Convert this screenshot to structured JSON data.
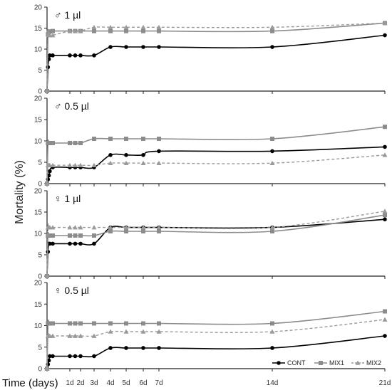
{
  "figure": {
    "ylabel": "Mortality (%)",
    "xlabel": "Time (days)",
    "legend": [
      "CONT",
      "MIX1",
      "MIX2"
    ],
    "colors": {
      "CONT": "#000000",
      "MIX1": "#8c8c8c",
      "MIX2": "#9a9a9a"
    }
  },
  "chart_data": [
    {
      "type": "line",
      "title": "♂ 1 µl",
      "ylim": [
        0,
        20
      ],
      "yticks": [
        "0",
        "5",
        "10",
        "15",
        "20"
      ],
      "x_tick_labels": [
        "1d",
        "2d",
        "3d",
        "4d",
        "5d",
        "6d",
        "7d",
        "14d",
        "21d"
      ],
      "legend_position": "bottom-right",
      "grid": false,
      "series": [
        {
          "name": "CONT",
          "style": "solid-circle",
          "x": [
            0,
            0.04,
            0.08,
            0.12,
            0.25,
            1,
            1.5,
            2,
            3,
            4,
            5,
            6,
            7,
            14,
            21
          ],
          "y": [
            0,
            5.7,
            7.6,
            8.5,
            8.5,
            8.5,
            8.5,
            8.5,
            8.5,
            10.5,
            10.5,
            10.5,
            10.5,
            10.5,
            13.3
          ]
        },
        {
          "name": "MIX1",
          "style": "solid-square",
          "x": [
            0,
            0.04,
            0.08,
            0.12,
            0.25,
            1,
            1.5,
            2,
            3,
            4,
            5,
            6,
            7,
            14,
            21
          ],
          "y": [
            0,
            13.5,
            14.0,
            14.2,
            14.3,
            14.3,
            14.3,
            14.3,
            14.3,
            14.3,
            14.3,
            14.3,
            14.3,
            14.3,
            16.2
          ]
        },
        {
          "name": "MIX2",
          "style": "dashed-triangle",
          "x": [
            0,
            0.04,
            0.08,
            0.12,
            0.25,
            1,
            1.5,
            2,
            3,
            4,
            5,
            6,
            7,
            14,
            21
          ],
          "y": [
            0,
            13.5,
            13.3,
            13.3,
            13.3,
            14.3,
            14.3,
            14.3,
            15.2,
            15.2,
            15.2,
            15.2,
            15.2,
            15.2,
            16.2
          ]
        }
      ]
    },
    {
      "type": "line",
      "title": "♂ 0.5 µl",
      "ylim": [
        0,
        20
      ],
      "yticks": [
        "0",
        "5",
        "10",
        "15",
        "20"
      ],
      "x_tick_labels": [
        "1d",
        "2d",
        "3d",
        "4d",
        "5d",
        "6d",
        "7d",
        "14d",
        "21d"
      ],
      "legend_position": "bottom-right",
      "grid": false,
      "series": [
        {
          "name": "CONT",
          "style": "solid-circle",
          "x": [
            0,
            0.04,
            0.08,
            0.12,
            0.25,
            1,
            1.5,
            2,
            3,
            4,
            5,
            6,
            7,
            14,
            21
          ],
          "y": [
            0,
            1.0,
            1.9,
            2.9,
            3.8,
            3.8,
            3.8,
            3.8,
            3.8,
            6.7,
            6.7,
            6.7,
            7.6,
            7.6,
            8.6
          ]
        },
        {
          "name": "MIX1",
          "style": "solid-square",
          "x": [
            0,
            0.04,
            0.08,
            0.12,
            0.25,
            1,
            1.5,
            2,
            3,
            4,
            5,
            6,
            7,
            14,
            21
          ],
          "y": [
            0,
            9.5,
            9.5,
            9.5,
            9.5,
            9.5,
            9.5,
            9.5,
            10.5,
            10.5,
            10.5,
            10.5,
            10.5,
            10.5,
            13.3
          ]
        },
        {
          "name": "MIX2",
          "style": "dashed-triangle",
          "x": [
            0,
            0.04,
            0.08,
            0.12,
            0.25,
            1,
            1.5,
            2,
            3,
            4,
            5,
            6,
            7,
            14,
            21
          ],
          "y": [
            0,
            4.3,
            4.3,
            4.3,
            4.3,
            4.3,
            4.3,
            4.3,
            4.3,
            4.8,
            4.8,
            4.8,
            4.8,
            4.8,
            6.7
          ]
        }
      ]
    },
    {
      "type": "line",
      "title": "♀ 1 µl",
      "ylim": [
        0,
        20
      ],
      "yticks": [
        "0",
        "5",
        "10",
        "15",
        "20"
      ],
      "x_tick_labels": [
        "1d",
        "2d",
        "3d",
        "4d",
        "5d",
        "6d",
        "7d",
        "14d",
        "21d"
      ],
      "legend_position": "bottom-right",
      "grid": false,
      "series": [
        {
          "name": "CONT",
          "style": "solid-circle",
          "x": [
            0,
            0.04,
            0.08,
            0.12,
            0.25,
            1,
            1.5,
            2,
            3,
            4,
            5,
            6,
            7,
            14,
            21
          ],
          "y": [
            0,
            5.7,
            7.6,
            7.6,
            7.6,
            7.6,
            7.6,
            7.6,
            7.6,
            11.4,
            11.4,
            11.4,
            11.4,
            11.4,
            13.3
          ]
        },
        {
          "name": "MIX1",
          "style": "solid-square",
          "x": [
            0,
            0.04,
            0.08,
            0.12,
            0.25,
            1,
            1.5,
            2,
            3,
            4,
            5,
            6,
            7,
            14,
            21
          ],
          "y": [
            0,
            9.5,
            9.5,
            9.5,
            9.5,
            9.5,
            9.5,
            9.5,
            9.5,
            10.5,
            10.5,
            10.5,
            10.5,
            10.5,
            14.3
          ]
        },
        {
          "name": "MIX2",
          "style": "dashed-triangle",
          "x": [
            0,
            0.04,
            0.08,
            0.12,
            0.25,
            1,
            1.5,
            2,
            3,
            4,
            5,
            6,
            7,
            14,
            21
          ],
          "y": [
            0,
            11.4,
            11.4,
            11.4,
            11.4,
            11.4,
            11.4,
            11.4,
            11.4,
            11.4,
            11.4,
            11.4,
            11.4,
            11.4,
            15.2
          ]
        }
      ]
    },
    {
      "type": "line",
      "title": "♀ 0.5 µl",
      "ylim": [
        0,
        20
      ],
      "yticks": [
        "0",
        "5",
        "10",
        "15",
        "20"
      ],
      "x_tick_labels": [
        "1d",
        "2d",
        "3d",
        "4d",
        "5d",
        "6d",
        "7d",
        "14d",
        "21d"
      ],
      "legend_position": "bottom-right",
      "grid": false,
      "series": [
        {
          "name": "CONT",
          "style": "solid-circle",
          "x": [
            0,
            0.04,
            0.08,
            0.12,
            0.25,
            1,
            1.5,
            2,
            3,
            4,
            5,
            6,
            7,
            14,
            21
          ],
          "y": [
            0,
            1.0,
            1.9,
            2.9,
            2.9,
            2.9,
            2.9,
            2.9,
            2.9,
            4.8,
            4.8,
            4.8,
            4.8,
            4.8,
            7.6
          ]
        },
        {
          "name": "MIX1",
          "style": "solid-square",
          "x": [
            0,
            0.04,
            0.08,
            0.12,
            0.25,
            1,
            1.5,
            2,
            3,
            4,
            5,
            6,
            7,
            14,
            21
          ],
          "y": [
            0,
            10.5,
            10.5,
            10.5,
            10.5,
            10.5,
            10.5,
            10.5,
            10.5,
            10.5,
            10.5,
            10.5,
            10.5,
            10.5,
            13.3
          ]
        },
        {
          "name": "MIX2",
          "style": "dashed-triangle",
          "x": [
            0,
            0.04,
            0.08,
            0.12,
            0.25,
            1,
            1.5,
            2,
            3,
            4,
            5,
            6,
            7,
            14,
            21
          ],
          "y": [
            0,
            7.6,
            7.6,
            7.6,
            7.6,
            7.6,
            7.6,
            7.6,
            7.6,
            8.6,
            8.6,
            8.6,
            8.6,
            8.6,
            11.4
          ]
        }
      ]
    }
  ]
}
